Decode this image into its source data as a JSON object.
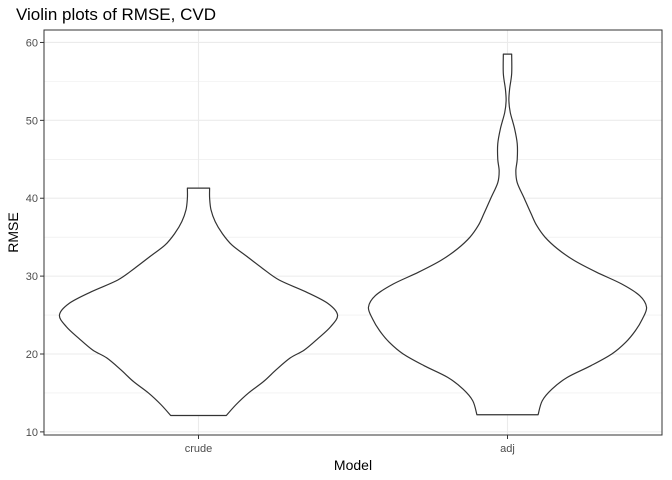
{
  "chart_data": {
    "type": "violin",
    "title": "Violin plots of RMSE, CVD",
    "xlabel": "Model",
    "ylabel": "RMSE",
    "categories": [
      "crude",
      "adj"
    ],
    "ylim": [
      9.6,
      61.6
    ],
    "yticks": [
      10,
      20,
      30,
      40,
      50,
      60
    ],
    "grid": true,
    "violins": [
      {
        "name": "crude",
        "min": 12.1,
        "max": 41.3,
        "profile": [
          [
            12.1,
            0.2
          ],
          [
            13.5,
            0.27
          ],
          [
            15.0,
            0.36
          ],
          [
            16.5,
            0.47
          ],
          [
            18.0,
            0.56
          ],
          [
            19.5,
            0.66
          ],
          [
            20.5,
            0.76
          ],
          [
            22.0,
            0.86
          ],
          [
            23.5,
            0.95
          ],
          [
            25.0,
            1.0
          ],
          [
            26.5,
            0.93
          ],
          [
            28.0,
            0.77
          ],
          [
            29.5,
            0.58
          ],
          [
            31.0,
            0.46
          ],
          [
            32.5,
            0.35
          ],
          [
            34.0,
            0.24
          ],
          [
            35.5,
            0.17
          ],
          [
            37.0,
            0.12
          ],
          [
            38.5,
            0.09
          ],
          [
            40.0,
            0.08
          ],
          [
            41.3,
            0.08
          ]
        ]
      },
      {
        "name": "adj",
        "min": 12.2,
        "max": 58.5,
        "profile": [
          [
            12.2,
            0.22
          ],
          [
            14.0,
            0.25
          ],
          [
            15.5,
            0.32
          ],
          [
            17.0,
            0.43
          ],
          [
            18.5,
            0.6
          ],
          [
            20.0,
            0.75
          ],
          [
            21.5,
            0.85
          ],
          [
            23.0,
            0.92
          ],
          [
            24.5,
            0.97
          ],
          [
            26.0,
            1.0
          ],
          [
            27.5,
            0.95
          ],
          [
            29.0,
            0.82
          ],
          [
            30.5,
            0.64
          ],
          [
            32.0,
            0.48
          ],
          [
            33.5,
            0.36
          ],
          [
            35.0,
            0.27
          ],
          [
            36.5,
            0.21
          ],
          [
            38.0,
            0.17
          ],
          [
            40.0,
            0.12
          ],
          [
            42.0,
            0.07
          ],
          [
            43.5,
            0.06
          ],
          [
            45.0,
            0.07
          ],
          [
            47.0,
            0.07
          ],
          [
            49.0,
            0.05
          ],
          [
            51.0,
            0.02
          ],
          [
            52.5,
            0.01
          ],
          [
            54.0,
            0.015
          ],
          [
            56.0,
            0.03
          ],
          [
            58.5,
            0.03
          ]
        ]
      }
    ]
  },
  "colors": {
    "panel_background": "#ffffff",
    "grid": "#ebebeb",
    "panel_border": "#333333",
    "violin_stroke": "#333333",
    "violin_fill": "#ffffff",
    "tick_label": "#4d4d4d"
  }
}
